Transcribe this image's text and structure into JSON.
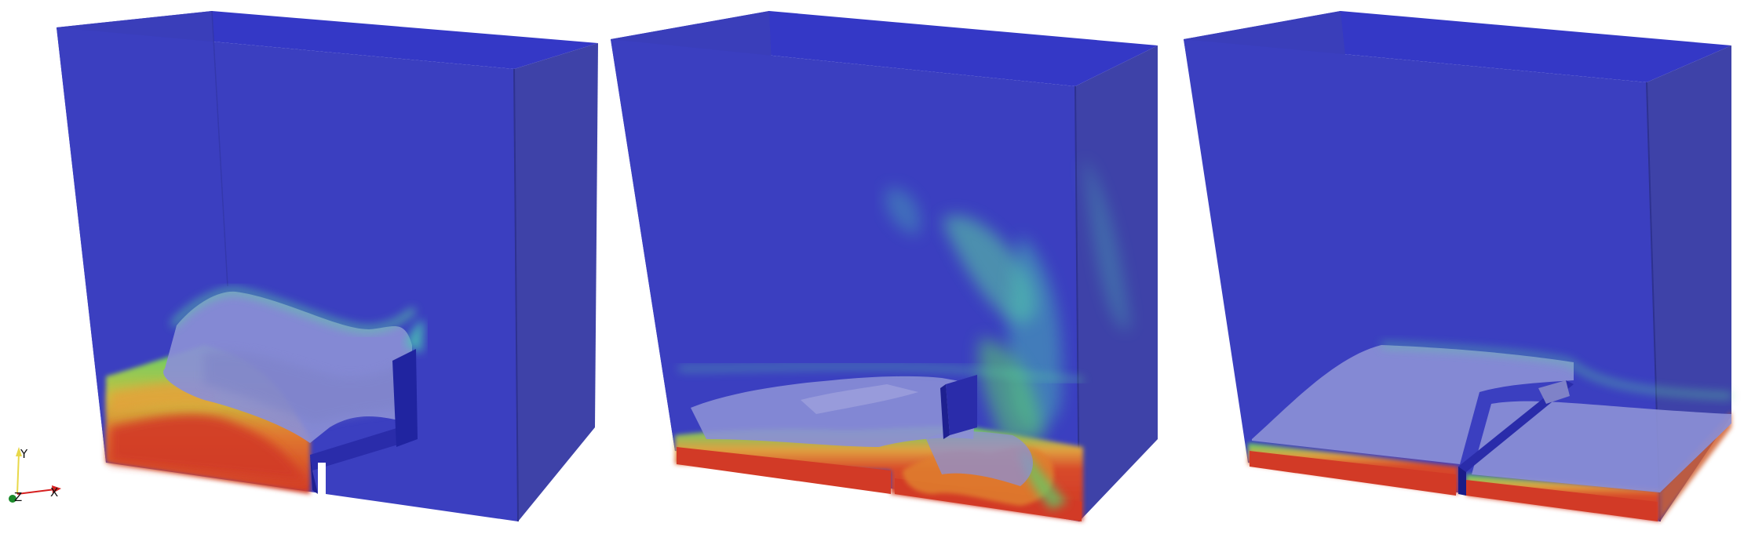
{
  "axes_triad": {
    "x_label": "X",
    "y_label": "Y",
    "z_label": "Z",
    "x_color": "#d62020",
    "y_color": "#e8d84a",
    "z_color": "#1a8a2a"
  },
  "palette": {
    "domain_blue": "#3b3fc0",
    "domain_top": "#3438c6",
    "domain_side": "#3c40a6",
    "fluid_red": "#d23a26",
    "fluid_orange": "#e4a03a",
    "fluid_green": "#5ad26a",
    "fluid_cyan": "#4bc6b4",
    "free_surface": "#8b8fd6",
    "obstacle": "#2020a0"
  },
  "panels": [
    {
      "id": "panel-1",
      "state": "initial-wave"
    },
    {
      "id": "panel-2",
      "state": "turbulent-splash"
    },
    {
      "id": "panel-3",
      "state": "settled-layer"
    }
  ]
}
